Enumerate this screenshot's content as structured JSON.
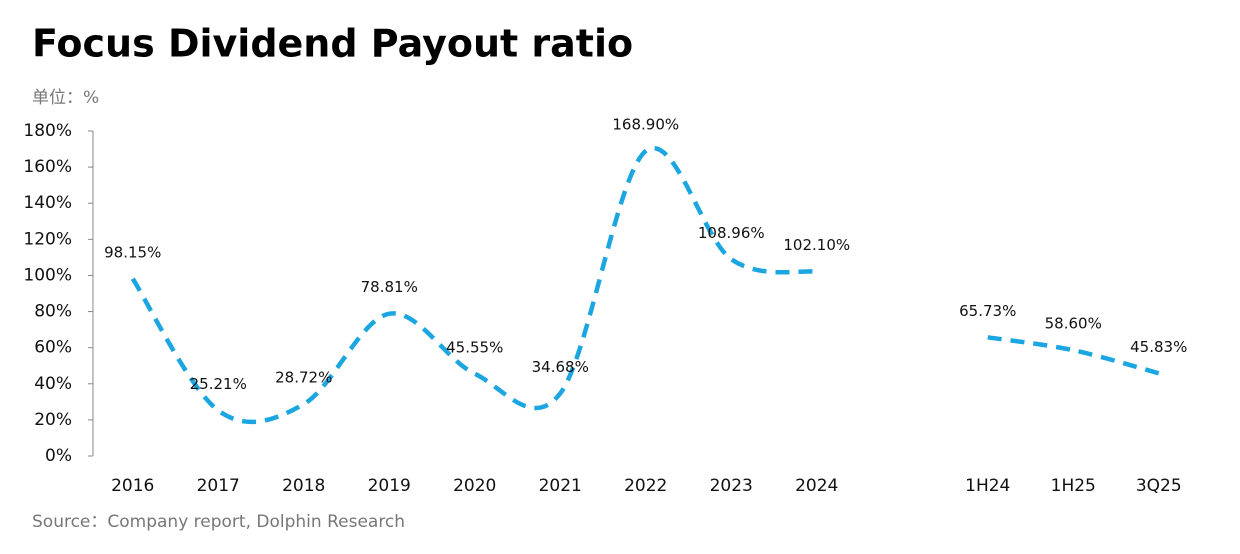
{
  "chart_data": {
    "type": "line",
    "title": "Focus Dividend Payout ratio",
    "unit_label": "单位：%",
    "source": "Source：Company report, Dolphin Research",
    "categories": [
      "2016",
      "2017",
      "2018",
      "2019",
      "2020",
      "2021",
      "2022",
      "2023",
      "2024",
      null,
      "1H24",
      "1H25",
      "3Q25"
    ],
    "values": [
      98.15,
      25.21,
      28.72,
      78.81,
      45.55,
      34.68,
      168.9,
      108.96,
      102.1,
      null,
      65.73,
      58.6,
      45.83
    ],
    "value_labels": [
      "98.15%",
      "25.21%",
      "28.72%",
      "78.81%",
      "45.55%",
      "34.68%",
      "168.90%",
      "108.96%",
      "102.10%",
      null,
      "65.73%",
      "58.60%",
      "45.83%"
    ],
    "color": "#1ba6e1",
    "line_style": "dashed",
    "smooth": true,
    "ylim": [
      0,
      180
    ],
    "yticks": [
      {
        "value": 0,
        "label": "0%"
      },
      {
        "value": 20,
        "label": "20%"
      },
      {
        "value": 40,
        "label": "40%"
      },
      {
        "value": 60,
        "label": "60%"
      },
      {
        "value": 80,
        "label": "80%"
      },
      {
        "value": 100,
        "label": "100%"
      },
      {
        "value": 120,
        "label": "120%"
      },
      {
        "value": 140,
        "label": "140%"
      },
      {
        "value": 160,
        "label": "160%"
      },
      {
        "value": 180,
        "label": "180%"
      }
    ],
    "grid": false
  }
}
